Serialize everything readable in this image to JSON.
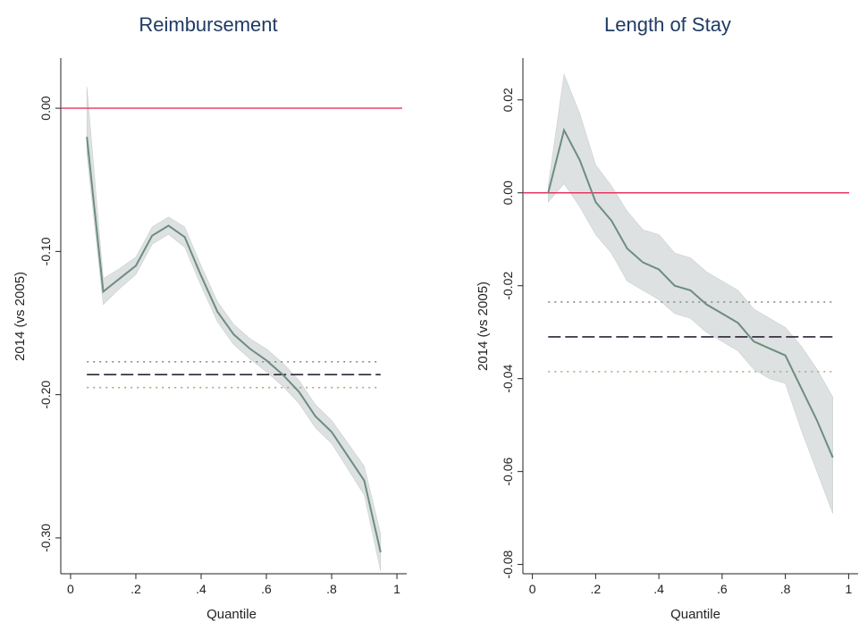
{
  "chart_data": [
    {
      "type": "line",
      "title": "Reimbursement",
      "xlabel": "Quantile",
      "ylabel": "2014 (vs 2005)",
      "xlim": [
        -0.03,
        1.03
      ],
      "ylim": [
        -0.325,
        0.035
      ],
      "xticks": [
        0,
        0.2,
        0.4,
        0.6,
        0.8,
        1
      ],
      "xtick_labels": [
        "0",
        ".2",
        ".4",
        ".6",
        ".8",
        "1"
      ],
      "yticks": [
        0.0,
        -0.1,
        -0.2,
        -0.3
      ],
      "ytick_labels": [
        "0.00",
        "-0.10",
        "-0.20",
        "-0.30"
      ],
      "x": [
        0.05,
        0.1,
        0.15,
        0.2,
        0.25,
        0.3,
        0.35,
        0.4,
        0.45,
        0.5,
        0.55,
        0.6,
        0.65,
        0.7,
        0.75,
        0.8,
        0.85,
        0.9,
        0.95
      ],
      "series": [
        {
          "values": [
            -0.02,
            -0.128,
            -0.119,
            -0.11,
            -0.089,
            -0.082,
            -0.09,
            -0.117,
            -0.142,
            -0.158,
            -0.168,
            -0.176,
            -0.186,
            -0.198,
            -0.215,
            -0.226,
            -0.243,
            -0.26,
            -0.31
          ],
          "ci_lower": [
            -0.032,
            -0.137,
            -0.126,
            -0.116,
            -0.095,
            -0.088,
            -0.097,
            -0.124,
            -0.149,
            -0.165,
            -0.175,
            -0.184,
            -0.194,
            -0.206,
            -0.223,
            -0.234,
            -0.252,
            -0.27,
            -0.323
          ],
          "ci_upper": [
            0.015,
            -0.119,
            -0.112,
            -0.104,
            -0.083,
            -0.076,
            -0.083,
            -0.11,
            -0.135,
            -0.151,
            -0.161,
            -0.168,
            -0.178,
            -0.19,
            -0.207,
            -0.218,
            -0.234,
            -0.25,
            -0.297
          ],
          "color": "#6e8c80",
          "band_color": "#dde1e1"
        }
      ],
      "hlines": [
        {
          "y": 0.0,
          "style": "solid",
          "color": "#e8355f"
        },
        {
          "y": -0.177,
          "style": "dotted",
          "color": "#8a8f86"
        },
        {
          "y": -0.186,
          "style": "dashed",
          "color": "#2b2333"
        },
        {
          "y": -0.195,
          "style": "dotted",
          "color": "#b8a07a"
        }
      ],
      "grid": false
    },
    {
      "type": "line",
      "title": "Length of Stay",
      "xlabel": "Quantile",
      "ylabel": "2014 (vs 2005)",
      "xlim": [
        -0.03,
        1.03
      ],
      "ylim": [
        -0.082,
        0.029
      ],
      "xticks": [
        0,
        0.2,
        0.4,
        0.6,
        0.8,
        1
      ],
      "xtick_labels": [
        "0",
        ".2",
        ".4",
        ".6",
        ".8",
        "1"
      ],
      "yticks": [
        0.02,
        0.0,
        -0.02,
        -0.04,
        -0.06,
        -0.08
      ],
      "ytick_labels": [
        "0.02",
        "0.00",
        "-0.02",
        "-0.04",
        "-0.06",
        "-0.08"
      ],
      "x": [
        0.05,
        0.1,
        0.15,
        0.2,
        0.25,
        0.3,
        0.35,
        0.4,
        0.45,
        0.5,
        0.55,
        0.6,
        0.65,
        0.7,
        0.75,
        0.8,
        0.85,
        0.9,
        0.95
      ],
      "series": [
        {
          "values": [
            0.0,
            0.0135,
            0.007,
            -0.002,
            -0.006,
            -0.012,
            -0.015,
            -0.0165,
            -0.02,
            -0.021,
            -0.024,
            -0.026,
            -0.028,
            -0.032,
            -0.0335,
            -0.035,
            -0.042,
            -0.049,
            -0.057
          ],
          "ci_lower": [
            -0.002,
            0.002,
            -0.003,
            -0.009,
            -0.013,
            -0.019,
            -0.021,
            -0.023,
            -0.026,
            -0.027,
            -0.03,
            -0.032,
            -0.034,
            -0.038,
            -0.04,
            -0.041,
            -0.051,
            -0.06,
            -0.069
          ],
          "ci_upper": [
            0.0015,
            0.0255,
            0.017,
            0.006,
            0.0015,
            -0.004,
            -0.008,
            -0.009,
            -0.013,
            -0.014,
            -0.017,
            -0.019,
            -0.021,
            -0.025,
            -0.027,
            -0.029,
            -0.033,
            -0.038,
            -0.044
          ],
          "color": "#6e8c80",
          "band_color": "#dde1e1"
        }
      ],
      "hlines": [
        {
          "y": 0.0,
          "style": "solid",
          "color": "#e8355f"
        },
        {
          "y": -0.0235,
          "style": "dotted",
          "color": "#8a8f86"
        },
        {
          "y": -0.031,
          "style": "dashed",
          "color": "#2b2333"
        },
        {
          "y": -0.0385,
          "style": "dotted",
          "color": "#b8a07a"
        }
      ],
      "grid": false
    }
  ]
}
